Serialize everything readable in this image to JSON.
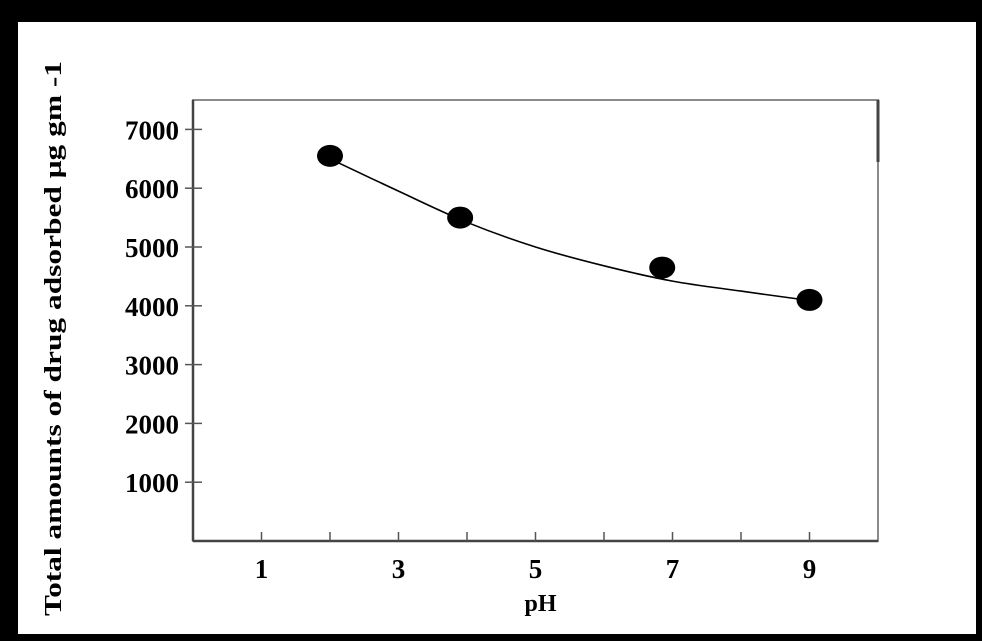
{
  "chart_data": {
    "type": "scatter",
    "title": "",
    "xlabel": "pH",
    "ylabel": "Total amounts of drug adsorbed  μg gm -1",
    "x_ticks": [
      1,
      3,
      5,
      7,
      9
    ],
    "y_ticks": [
      1000,
      2000,
      3000,
      4000,
      5000,
      6000,
      7000
    ],
    "xlim": [
      0,
      10
    ],
    "ylim": [
      0,
      7500
    ],
    "grid": false,
    "legend": "none",
    "series": [
      {
        "points": [
          {
            "x": 2.0,
            "y": 6550
          },
          {
            "x": 3.9,
            "y": 5500
          },
          {
            "x": 6.85,
            "y": 4650
          },
          {
            "x": 9.0,
            "y": 4100
          }
        ],
        "marker_color": "#000000"
      }
    ],
    "trend_curve": {
      "points": [
        {
          "x": 2.0,
          "y": 6500
        },
        {
          "x": 3.0,
          "y": 5950
        },
        {
          "x": 4.0,
          "y": 5420
        },
        {
          "x": 5.0,
          "y": 5000
        },
        {
          "x": 6.0,
          "y": 4680
        },
        {
          "x": 7.0,
          "y": 4420
        },
        {
          "x": 8.0,
          "y": 4250
        },
        {
          "x": 9.0,
          "y": 4090
        }
      ],
      "color": "#000000"
    }
  }
}
